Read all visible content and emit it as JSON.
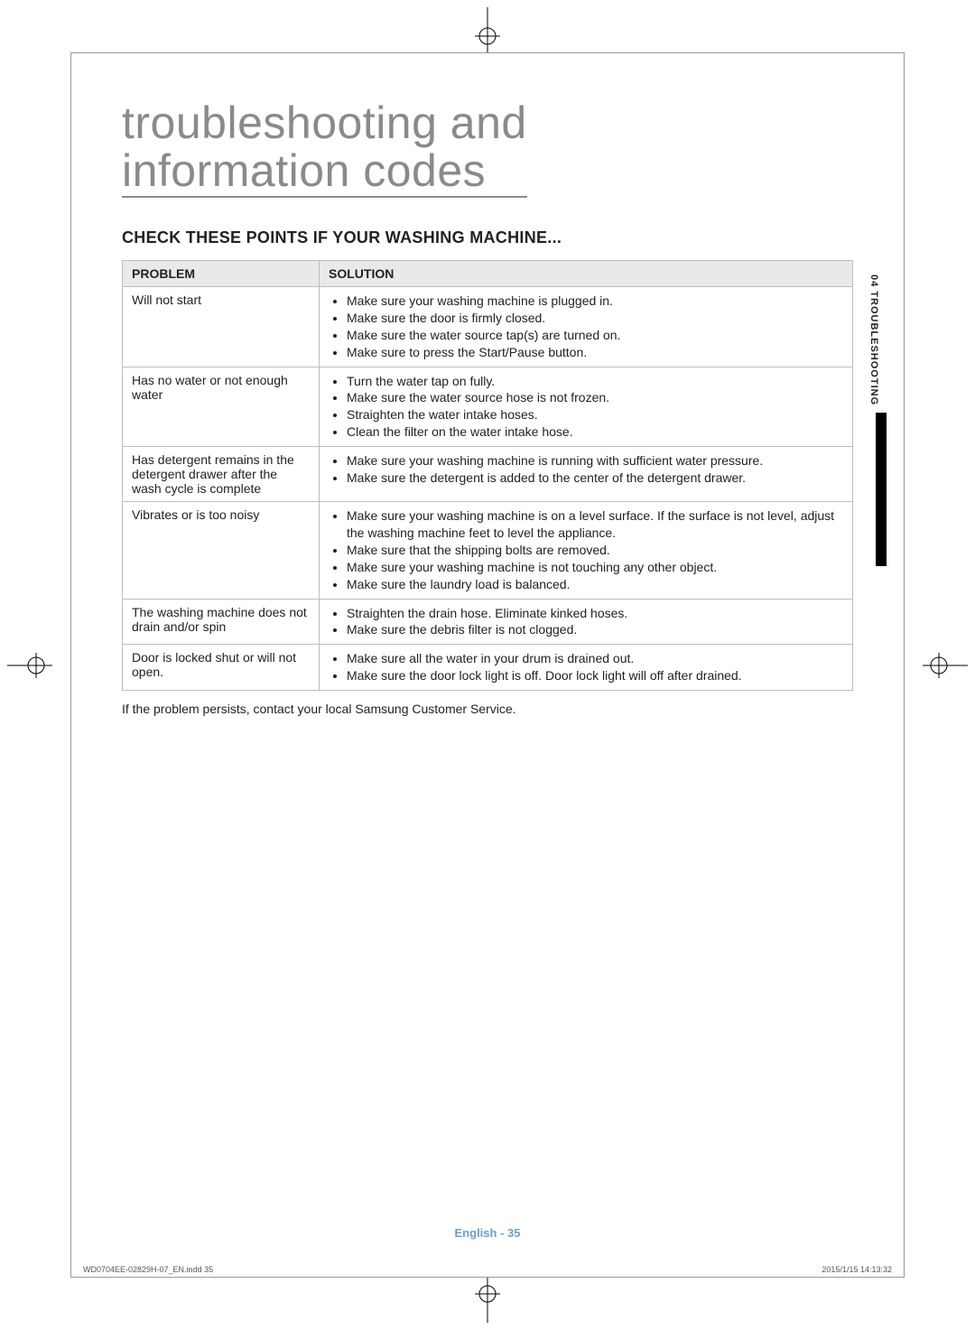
{
  "title_line1": "troubleshooting and",
  "title_line2": "information codes",
  "subheading": "CHECK THESE POINTS IF YOUR WASHING MACHINE...",
  "table": {
    "header_problem": "PROBLEM",
    "header_solution": "SOLUTION",
    "rows": [
      {
        "problem": "Will not start",
        "solutions": [
          "Make sure your washing machine is plugged in.",
          "Make sure the door is firmly closed.",
          "Make sure the water source tap(s) are turned on.",
          "Make sure to press the Start/Pause button."
        ]
      },
      {
        "problem": "Has no water or not enough water",
        "solutions": [
          "Turn the water tap on fully.",
          "Make sure the water source hose is not frozen.",
          "Straighten the water intake hoses.",
          "Clean the filter on the water intake hose."
        ]
      },
      {
        "problem": "Has detergent remains in the detergent drawer after the wash cycle is complete",
        "solutions": [
          "Make sure your washing machine is running with sufficient water pressure.",
          "Make sure the detergent is added to the center of the detergent drawer."
        ]
      },
      {
        "problem": "Vibrates or is too noisy",
        "solutions": [
          "Make sure your washing machine is on a level surface. If the surface is not level, adjust the washing machine feet to level the appliance.",
          "Make sure that the shipping bolts are removed.",
          "Make sure your washing machine is not touching any other object.",
          "Make sure the laundry load is balanced."
        ]
      },
      {
        "problem": "The washing machine does not drain and/or spin",
        "solutions": [
          "Straighten the drain hose. Eliminate kinked hoses.",
          "Make sure the debris filter is not clogged."
        ]
      },
      {
        "problem": "Door is locked shut or will not open.",
        "solutions": [
          "Make sure all the water in your drum is drained out.",
          "Make sure the door lock light is off. Door lock light will off after drained."
        ]
      }
    ]
  },
  "footnote": "If the problem persists, contact your local Samsung Customer Service.",
  "side_tab": "04  TROUBLESHOOTING",
  "footer": "English - 35",
  "imprint_left": "WD0704EE-02829H-07_EN.indd   35",
  "imprint_right": "2015/1/15   14:13:32",
  "colors": {
    "title_gray": "#8a8a8a",
    "header_bg": "#e9e9e9",
    "border": "#bdbdbd",
    "footer_blue": "#6aa0c7"
  }
}
